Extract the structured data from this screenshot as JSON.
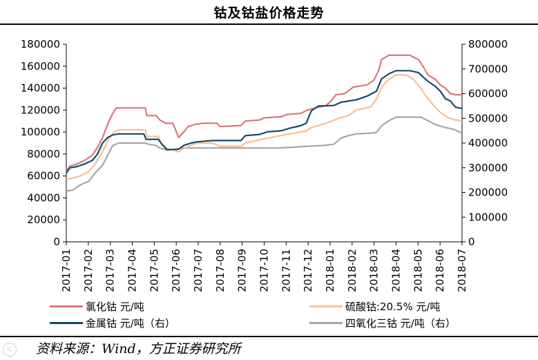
{
  "title": "钴及钴盐价格走势",
  "source": "资料来源：Wind，方正证券研究所",
  "chart_data": {
    "type": "line",
    "title": "钴及钴盐价格走势",
    "x_tick_labels": [
      "2017-01",
      "2017-02",
      "2017-03",
      "2017-04",
      "2017-05",
      "2017-06",
      "2017-07",
      "2017-08",
      "2017-09",
      "2017-10",
      "2017-11",
      "2017-12",
      "2018-01",
      "2018-02",
      "2018-03",
      "2018-04",
      "2018-05",
      "2018-06",
      "2018-07"
    ],
    "xlim": [
      "2017-01-01",
      "2018-07-01"
    ],
    "y_left": {
      "min": 0,
      "max": 180000,
      "ticks": [
        "0",
        "20000",
        "40000",
        "60000",
        "80000",
        "100000",
        "120000",
        "140000",
        "160000",
        "180000"
      ]
    },
    "y_right": {
      "min": 0,
      "max": 800000,
      "ticks": [
        "0",
        "100000",
        "200000",
        "300000",
        "400000",
        "500000",
        "600000",
        "700000",
        "800000"
      ]
    },
    "grid": false,
    "legend_position": "bottom",
    "series": [
      {
        "name": "氯化钴 元/吨",
        "color": "#d7787c",
        "axis": "left",
        "points": [
          [
            "2017-01-01",
            64000
          ],
          [
            "2017-01-06",
            69000
          ],
          [
            "2017-01-16",
            71000
          ],
          [
            "2017-01-26",
            74000
          ],
          [
            "2017-02-06",
            79000
          ],
          [
            "2017-02-13",
            86000
          ],
          [
            "2017-02-20",
            95000
          ],
          [
            "2017-02-27",
            107000
          ],
          [
            "2017-03-06",
            117000
          ],
          [
            "2017-03-11",
            122000
          ],
          [
            "2017-04-15",
            122000
          ],
          [
            "2017-04-20",
            122000
          ],
          [
            "2017-04-22",
            115000
          ],
          [
            "2017-05-05",
            115000
          ],
          [
            "2017-05-10",
            111000
          ],
          [
            "2017-05-18",
            108000
          ],
          [
            "2017-05-28",
            108000
          ],
          [
            "2017-06-05",
            95000
          ],
          [
            "2017-06-12",
            100000
          ],
          [
            "2017-06-18",
            105000
          ],
          [
            "2017-06-28",
            107000
          ],
          [
            "2017-07-08",
            108000
          ],
          [
            "2017-07-28",
            108000
          ],
          [
            "2017-08-01",
            105000
          ],
          [
            "2017-08-30",
            106000
          ],
          [
            "2017-09-05",
            110000
          ],
          [
            "2017-09-25",
            111000
          ],
          [
            "2017-10-01",
            113000
          ],
          [
            "2017-10-25",
            114000
          ],
          [
            "2017-11-01",
            116000
          ],
          [
            "2017-11-20",
            117000
          ],
          [
            "2017-11-30",
            120000
          ],
          [
            "2017-12-10",
            122000
          ],
          [
            "2017-12-25",
            124000
          ],
          [
            "2018-01-01",
            128000
          ],
          [
            "2018-01-08",
            134000
          ],
          [
            "2018-01-20",
            135000
          ],
          [
            "2018-02-01",
            141000
          ],
          [
            "2018-02-20",
            143000
          ],
          [
            "2018-03-01",
            147000
          ],
          [
            "2018-03-08",
            156000
          ],
          [
            "2018-03-12",
            166000
          ],
          [
            "2018-03-22",
            170000
          ],
          [
            "2018-04-20",
            170000
          ],
          [
            "2018-05-02",
            166000
          ],
          [
            "2018-05-08",
            160000
          ],
          [
            "2018-05-15",
            152000
          ],
          [
            "2018-05-25",
            148000
          ],
          [
            "2018-06-01",
            143000
          ],
          [
            "2018-06-08",
            140000
          ],
          [
            "2018-06-15",
            135000
          ],
          [
            "2018-06-22",
            134000
          ],
          [
            "2018-07-01",
            134000
          ]
        ]
      },
      {
        "name": "硫酸钴:20.5% 元/吨",
        "color": "#f7bf91",
        "axis": "left",
        "points": [
          [
            "2017-01-01",
            57000
          ],
          [
            "2017-01-10",
            58000
          ],
          [
            "2017-01-20",
            60000
          ],
          [
            "2017-02-01",
            64000
          ],
          [
            "2017-02-10",
            71000
          ],
          [
            "2017-02-20",
            82000
          ],
          [
            "2017-02-28",
            93000
          ],
          [
            "2017-03-08",
            100000
          ],
          [
            "2017-03-14",
            102000
          ],
          [
            "2017-04-20",
            102000
          ],
          [
            "2017-04-22",
            96000
          ],
          [
            "2017-05-08",
            96000
          ],
          [
            "2017-05-12",
            90000
          ],
          [
            "2017-05-20",
            85000
          ],
          [
            "2017-06-05",
            82000
          ],
          [
            "2017-06-12",
            85000
          ],
          [
            "2017-06-22",
            88000
          ],
          [
            "2017-07-01",
            90000
          ],
          [
            "2017-07-22",
            90000
          ],
          [
            "2017-08-01",
            87000
          ],
          [
            "2017-08-30",
            87000
          ],
          [
            "2017-09-05",
            90000
          ],
          [
            "2017-09-25",
            93000
          ],
          [
            "2017-10-10",
            95000
          ],
          [
            "2017-10-25",
            97000
          ],
          [
            "2017-11-10",
            99000
          ],
          [
            "2017-11-28",
            101000
          ],
          [
            "2017-12-05",
            104000
          ],
          [
            "2017-12-15",
            106000
          ],
          [
            "2017-12-25",
            108000
          ],
          [
            "2018-01-10",
            112000
          ],
          [
            "2018-01-25",
            115000
          ],
          [
            "2018-02-05",
            120000
          ],
          [
            "2018-02-25",
            123000
          ],
          [
            "2018-03-05",
            130000
          ],
          [
            "2018-03-12",
            141000
          ],
          [
            "2018-03-22",
            148000
          ],
          [
            "2018-04-01",
            152000
          ],
          [
            "2018-04-15",
            152000
          ],
          [
            "2018-04-25",
            148000
          ],
          [
            "2018-05-05",
            140000
          ],
          [
            "2018-05-12",
            133000
          ],
          [
            "2018-05-22",
            125000
          ],
          [
            "2018-06-01",
            118000
          ],
          [
            "2018-06-12",
            113000
          ],
          [
            "2018-06-22",
            111000
          ],
          [
            "2018-07-01",
            110000
          ]
        ]
      },
      {
        "name": "金属钴 元/吨（右）",
        "color": "#0f4a6e",
        "axis": "right",
        "points": [
          [
            "2017-01-01",
            278000
          ],
          [
            "2017-01-06",
            300000
          ],
          [
            "2017-01-16",
            305000
          ],
          [
            "2017-01-26",
            315000
          ],
          [
            "2017-02-06",
            330000
          ],
          [
            "2017-02-13",
            355000
          ],
          [
            "2017-02-20",
            400000
          ],
          [
            "2017-02-27",
            422000
          ],
          [
            "2017-03-06",
            433000
          ],
          [
            "2017-03-14",
            437000
          ],
          [
            "2017-04-18",
            437000
          ],
          [
            "2017-04-21",
            415000
          ],
          [
            "2017-05-08",
            415000
          ],
          [
            "2017-05-12",
            398000
          ],
          [
            "2017-05-20",
            373000
          ],
          [
            "2017-06-05",
            375000
          ],
          [
            "2017-06-12",
            390000
          ],
          [
            "2017-06-22",
            400000
          ],
          [
            "2017-07-01",
            405000
          ],
          [
            "2017-07-22",
            410000
          ],
          [
            "2017-08-01",
            410000
          ],
          [
            "2017-08-30",
            410000
          ],
          [
            "2017-09-05",
            430000
          ],
          [
            "2017-09-25",
            435000
          ],
          [
            "2017-10-05",
            445000
          ],
          [
            "2017-10-25",
            450000
          ],
          [
            "2017-11-05",
            460000
          ],
          [
            "2017-11-20",
            470000
          ],
          [
            "2017-11-28",
            480000
          ],
          [
            "2017-12-05",
            530000
          ],
          [
            "2017-12-15",
            550000
          ],
          [
            "2018-01-05",
            552000
          ],
          [
            "2018-01-15",
            565000
          ],
          [
            "2018-02-05",
            575000
          ],
          [
            "2018-02-20",
            590000
          ],
          [
            "2018-03-05",
            610000
          ],
          [
            "2018-03-12",
            660000
          ],
          [
            "2018-03-22",
            680000
          ],
          [
            "2018-04-01",
            693000
          ],
          [
            "2018-04-20",
            693000
          ],
          [
            "2018-05-02",
            685000
          ],
          [
            "2018-05-08",
            668000
          ],
          [
            "2018-05-15",
            650000
          ],
          [
            "2018-05-25",
            630000
          ],
          [
            "2018-06-01",
            610000
          ],
          [
            "2018-06-08",
            580000
          ],
          [
            "2018-06-15",
            570000
          ],
          [
            "2018-06-22",
            545000
          ],
          [
            "2018-07-01",
            540000
          ]
        ]
      },
      {
        "name": "四氧化三钴 元/吨（右）",
        "color": "#a5a5a5",
        "axis": "right",
        "points": [
          [
            "2017-01-01",
            205000
          ],
          [
            "2017-01-10",
            210000
          ],
          [
            "2017-01-20",
            230000
          ],
          [
            "2017-02-01",
            245000
          ],
          [
            "2017-02-10",
            280000
          ],
          [
            "2017-02-20",
            310000
          ],
          [
            "2017-02-27",
            350000
          ],
          [
            "2017-03-06",
            390000
          ],
          [
            "2017-03-14",
            400000
          ],
          [
            "2017-04-20",
            400000
          ],
          [
            "2017-04-25",
            395000
          ],
          [
            "2017-05-05",
            390000
          ],
          [
            "2017-05-10",
            380000
          ],
          [
            "2017-05-20",
            372000
          ],
          [
            "2017-06-01",
            372000
          ],
          [
            "2017-06-08",
            380000
          ],
          [
            "2017-06-20",
            380000
          ],
          [
            "2017-07-20",
            380000
          ],
          [
            "2017-09-20",
            380000
          ],
          [
            "2017-10-20",
            380000
          ],
          [
            "2017-11-10",
            383000
          ],
          [
            "2017-11-20",
            385000
          ],
          [
            "2017-12-05",
            388000
          ],
          [
            "2017-12-20",
            390000
          ],
          [
            "2018-01-05",
            395000
          ],
          [
            "2018-01-15",
            420000
          ],
          [
            "2018-01-25",
            430000
          ],
          [
            "2018-02-05",
            437000
          ],
          [
            "2018-02-25",
            440000
          ],
          [
            "2018-03-05",
            443000
          ],
          [
            "2018-03-12",
            470000
          ],
          [
            "2018-03-22",
            490000
          ],
          [
            "2018-04-01",
            505000
          ],
          [
            "2018-04-20",
            505000
          ],
          [
            "2018-05-05",
            505000
          ],
          [
            "2018-05-12",
            495000
          ],
          [
            "2018-05-25",
            475000
          ],
          [
            "2018-06-05",
            465000
          ],
          [
            "2018-06-20",
            455000
          ],
          [
            "2018-07-01",
            440000
          ]
        ]
      }
    ]
  }
}
